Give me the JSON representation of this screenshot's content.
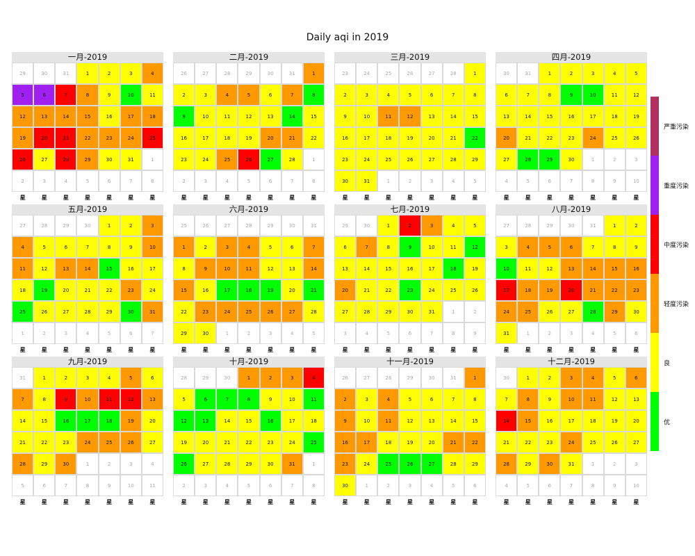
{
  "chart_data": {
    "type": "heatmap",
    "title": "Daily aqi in 2019",
    "weekday_labels": [
      "星",
      "星",
      "星",
      "星",
      "星",
      "星",
      "星"
    ],
    "legend": [
      {
        "label": "严重污染",
        "color": "#b0305f"
      },
      {
        "label": "重度污染",
        "color": "#a020f0"
      },
      {
        "label": "中度污染",
        "color": "#ff0000"
      },
      {
        "label": "轻度污染",
        "color": "#ff9900"
      },
      {
        "label": "良",
        "color": "#ffff00"
      },
      {
        "label": "优",
        "color": "#00ff00"
      }
    ],
    "level_colors": {
      "G": "#00ff00",
      "Y": "#ffff00",
      "O": "#ff9900",
      "R": "#ff0000",
      "P": "#a020f0",
      "M": "#b0305f"
    },
    "months": [
      {
        "title": "一月-2019",
        "start_col": 3,
        "lead": [
          29,
          30,
          31
        ],
        "levels": [
          "Y",
          "Y",
          "Y",
          "O",
          "P",
          "P",
          "R",
          "O",
          "Y",
          "G",
          "Y",
          "O",
          "O",
          "O",
          "O",
          "Y",
          "O",
          "O",
          "O",
          "R",
          "R",
          "O",
          "O",
          "O",
          "R",
          "R",
          "Y",
          "R",
          "O",
          "Y",
          "Y"
        ]
      },
      {
        "title": "二月-2019",
        "start_col": 6,
        "lead": [
          26,
          27,
          28,
          29,
          30,
          31
        ],
        "levels": [
          "O",
          "Y",
          "Y",
          "O",
          "O",
          "Y",
          "O",
          "G",
          "G",
          "Y",
          "Y",
          "Y",
          "Y",
          "G",
          "Y",
          "Y",
          "Y",
          "Y",
          "Y",
          "O",
          "O",
          "Y",
          "Y",
          "Y",
          "O",
          "R",
          "G",
          "Y"
        ]
      },
      {
        "title": "三月-2019",
        "start_col": 6,
        "lead": [
          23,
          24,
          25,
          26,
          27,
          28
        ],
        "levels": [
          "Y",
          "Y",
          "Y",
          "Y",
          "Y",
          "Y",
          "Y",
          "Y",
          "Y",
          "Y",
          "O",
          "O",
          "Y",
          "Y",
          "Y",
          "Y",
          "Y",
          "Y",
          "Y",
          "Y",
          "Y",
          "G",
          "Y",
          "Y",
          "Y",
          "Y",
          "Y",
          "Y",
          "Y",
          "Y",
          "Y"
        ]
      },
      {
        "title": "四月-2019",
        "start_col": 2,
        "lead": [
          30,
          31
        ],
        "levels": [
          "Y",
          "Y",
          "Y",
          "Y",
          "Y",
          "Y",
          "Y",
          "Y",
          "G",
          "G",
          "Y",
          "Y",
          "Y",
          "Y",
          "Y",
          "Y",
          "Y",
          "Y",
          "Y",
          "O",
          "Y",
          "Y",
          "Y",
          "O",
          "Y",
          "Y",
          "Y",
          "G",
          "G",
          "Y"
        ]
      },
      {
        "title": "五月-2019",
        "start_col": 4,
        "lead": [
          27,
          28,
          29,
          30
        ],
        "levels": [
          "Y",
          "Y",
          "O",
          "O",
          "Y",
          "Y",
          "Y",
          "Y",
          "Y",
          "O",
          "O",
          "Y",
          "O",
          "O",
          "G",
          "Y",
          "Y",
          "Y",
          "G",
          "Y",
          "Y",
          "Y",
          "O",
          "Y",
          "G",
          "Y",
          "Y",
          "Y",
          "Y",
          "G",
          "O"
        ]
      },
      {
        "title": "六月-2019",
        "start_col": 0,
        "lead": [
          25,
          26,
          27,
          28,
          29,
          30,
          31
        ],
        "levels": [
          "O",
          "Y",
          "O",
          "O",
          "Y",
          "Y",
          "O",
          "Y",
          "O",
          "O",
          "O",
          "Y",
          "Y",
          "O",
          "O",
          "Y",
          "G",
          "G",
          "G",
          "Y",
          "G",
          "Y",
          "O",
          "O",
          "O",
          "O",
          "O",
          "Y",
          "Y",
          "Y"
        ]
      },
      {
        "title": "七月-2019",
        "start_col": 2,
        "lead": [
          29,
          30
        ],
        "levels": [
          "Y",
          "R",
          "O",
          "Y",
          "Y",
          "Y",
          "O",
          "Y",
          "G",
          "Y",
          "Y",
          "G",
          "Y",
          "Y",
          "Y",
          "Y",
          "Y",
          "G",
          "Y",
          "O",
          "Y",
          "Y",
          "G",
          "Y",
          "Y",
          "Y",
          "Y",
          "Y",
          "Y",
          "Y",
          "Y"
        ]
      },
      {
        "title": "八月-2019",
        "start_col": 5,
        "lead": [
          27,
          28,
          29,
          30,
          31
        ],
        "levels": [
          "Y",
          "Y",
          "Y",
          "O",
          "O",
          "O",
          "Y",
          "Y",
          "Y",
          "G",
          "Y",
          "Y",
          "O",
          "O",
          "O",
          "O",
          "R",
          "O",
          "O",
          "R",
          "O",
          "O",
          "O",
          "O",
          "O",
          "Y",
          "Y",
          "G",
          "O",
          "Y",
          "Y"
        ]
      },
      {
        "title": "九月-2019",
        "start_col": 1,
        "lead": [
          31
        ],
        "levels": [
          "Y",
          "Y",
          "Y",
          "Y",
          "O",
          "Y",
          "O",
          "Y",
          "R",
          "O",
          "R",
          "R",
          "O",
          "Y",
          "Y",
          "G",
          "G",
          "G",
          "O",
          "Y",
          "Y",
          "Y",
          "Y",
          "O",
          "O",
          "O",
          "Y",
          "O",
          "Y",
          "O"
        ]
      },
      {
        "title": "十月-2019",
        "start_col": 3,
        "lead": [
          28,
          29,
          30
        ],
        "levels": [
          "O",
          "O",
          "O",
          "R",
          "Y",
          "G",
          "G",
          "G",
          "Y",
          "Y",
          "G",
          "G",
          "G",
          "Y",
          "Y",
          "G",
          "Y",
          "Y",
          "Y",
          "Y",
          "Y",
          "Y",
          "Y",
          "Y",
          "G",
          "G",
          "Y",
          "Y",
          "Y",
          "Y",
          "O"
        ]
      },
      {
        "title": "十一月-2019",
        "start_col": 6,
        "lead": [
          26,
          27,
          28,
          29,
          30,
          31
        ],
        "levels": [
          "O",
          "O",
          "Y",
          "O",
          "Y",
          "Y",
          "Y",
          "Y",
          "O",
          "Y",
          "O",
          "Y",
          "Y",
          "Y",
          "Y",
          "O",
          "O",
          "Y",
          "Y",
          "Y",
          "O",
          "O",
          "O",
          "Y",
          "G",
          "G",
          "G",
          "Y",
          "Y",
          "Y"
        ]
      },
      {
        "title": "十二月-2019",
        "start_col": 1,
        "lead": [
          30
        ],
        "levels": [
          "Y",
          "Y",
          "O",
          "O",
          "Y",
          "O",
          "Y",
          "O",
          "Y",
          "O",
          "O",
          "Y",
          "Y",
          "R",
          "O",
          "Y",
          "Y",
          "Y",
          "Y",
          "Y",
          "Y",
          "Y",
          "Y",
          "O",
          "Y",
          "Y",
          "Y",
          "O",
          "Y",
          "O",
          "Y"
        ]
      }
    ]
  }
}
